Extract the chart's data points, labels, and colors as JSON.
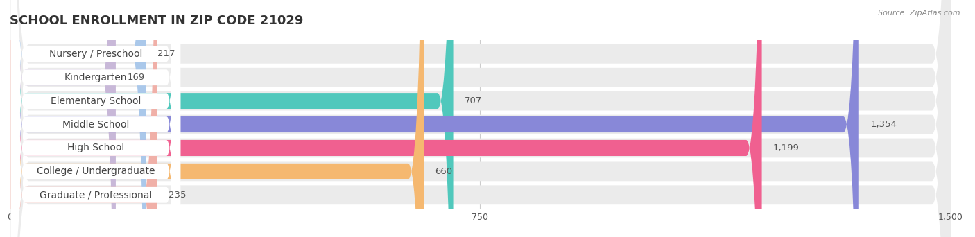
{
  "title": "SCHOOL ENROLLMENT IN ZIP CODE 21029",
  "source": "Source: ZipAtlas.com",
  "categories": [
    "Nursery / Preschool",
    "Kindergarten",
    "Elementary School",
    "Middle School",
    "High School",
    "College / Undergraduate",
    "Graduate / Professional"
  ],
  "values": [
    217,
    169,
    707,
    1354,
    1199,
    660,
    235
  ],
  "bar_colors": [
    "#aac8ea",
    "#c8b8d8",
    "#50c8bc",
    "#8888d8",
    "#f06090",
    "#f5b870",
    "#f0b0a8"
  ],
  "bar_bg_color": "#ebebeb",
  "xlim_max": 1500,
  "xticks": [
    0,
    750,
    1500
  ],
  "title_fontsize": 13,
  "label_fontsize": 10,
  "value_fontsize": 9.5,
  "background_color": "#ffffff",
  "fig_width": 14.06,
  "fig_height": 3.42,
  "dpi": 100
}
